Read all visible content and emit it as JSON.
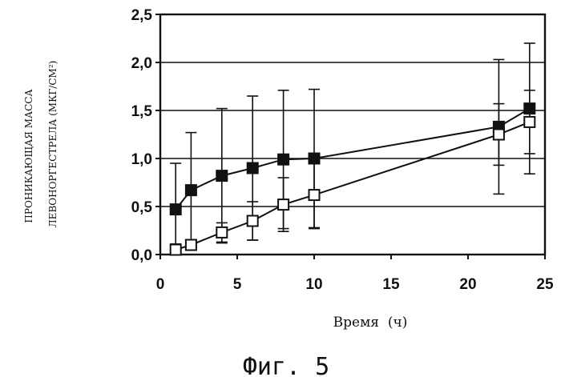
{
  "chart_data": {
    "type": "line",
    "title": "",
    "xlabel": "Время  (ч)",
    "ylabel_line1": "ПРОНИКАЮЩАЯ МАССА",
    "ylabel_line2": "ЛЕВОНОРГЕСТРЕЛА  (МКГ/СМ²)",
    "xlim": [
      0,
      25
    ],
    "ylim": [
      0,
      2.5
    ],
    "xticks": [
      "0",
      "5",
      "10",
      "15",
      "20",
      "25"
    ],
    "yticks": [
      "0,0",
      "0,5",
      "1,0",
      "1,5",
      "2,0",
      "2,5"
    ],
    "grid": "horizontal",
    "series": [
      {
        "marker": "filled-square",
        "x": [
          1,
          2,
          4,
          6,
          8,
          10,
          22,
          24
        ],
        "y": [
          0.47,
          0.67,
          0.82,
          0.9,
          0.99,
          1.0,
          1.33,
          1.52
        ],
        "err": [
          0.48,
          0.6,
          0.7,
          0.75,
          0.72,
          0.72,
          0.7,
          0.68
        ]
      },
      {
        "marker": "open-square",
        "x": [
          1,
          2,
          4,
          6,
          8,
          10,
          22,
          24
        ],
        "y": [
          0.05,
          0.1,
          0.23,
          0.35,
          0.52,
          0.62,
          1.25,
          1.38
        ],
        "err": [
          0.06,
          0.05,
          0.1,
          0.2,
          0.28,
          0.35,
          0.32,
          0.33
        ]
      }
    ]
  },
  "caption": "Фиг. 5"
}
